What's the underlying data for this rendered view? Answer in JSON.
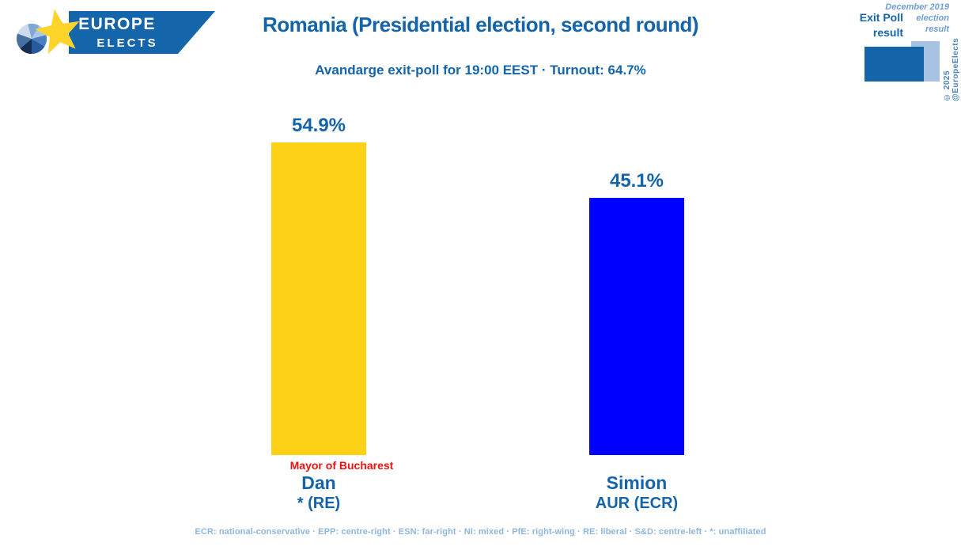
{
  "logo": {
    "line1": "EUROPE",
    "line2": "ELECTS"
  },
  "header": {
    "title": "Romania (Presidential election, second round)",
    "subtitle": "Avandarge exit-poll for 19:00 EEST · Turnout: 64.7%"
  },
  "top_right": {
    "exit_poll_line1": "Exit Poll",
    "exit_poll_line2": "result",
    "previous_line1": "December 2019",
    "previous_line2": "election",
    "previous_line3": "result",
    "copyright": "© 2025 @EuropeElects"
  },
  "bars": [
    {
      "value_label": "54.9%",
      "annotation": "Mayor of Bucharest",
      "name": "Dan",
      "party": "* (RE)"
    },
    {
      "value_label": "45.1%",
      "annotation": "",
      "name": "Simion",
      "party": "AUR (ECR)"
    }
  ],
  "footer": "ECR: national-conservative · EPP: centre-right · ESN: far-right · NI: mixed · PfE: right-wing · RE: liberal · S&D: centre-left · *: unaffiliated",
  "colors": {
    "brand_blue": "#1464AA",
    "banner_blue": "#1565AB",
    "bar_yellow": "#FCD116",
    "bar_blue": "#0000FF",
    "annotation_red": "#EE1111",
    "legend_light_blue": "#A6C3E2",
    "footer_muted_blue": "#8FB6DC"
  },
  "chart_data": {
    "type": "bar",
    "title": "Romania (Presidential election, second round)",
    "subtitle": "Avandarge exit-poll for 19:00 EEST · Turnout: 64.7%",
    "categories": [
      "Dan, * (RE)",
      "Simion, AUR (ECR)"
    ],
    "values": [
      54.9,
      45.1
    ],
    "unit": "%",
    "bar_colors": [
      "#FCD116",
      "#0000FF"
    ],
    "value_labels": [
      "54.9%",
      "45.1%"
    ],
    "annotations": [
      "Mayor of Bucharest",
      ""
    ],
    "ylim": [
      0,
      60
    ],
    "grid": false,
    "legend": [
      "Exit Poll result",
      "December 2019 election result"
    ],
    "xlabel": "",
    "ylabel": ""
  }
}
